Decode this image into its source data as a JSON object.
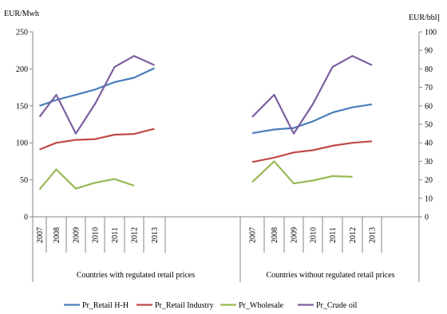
{
  "chart_data": {
    "type": "line",
    "left_axis_unit": "EUR/Mwh",
    "right_axis_unit": "EUR/bbl]",
    "left_ylim": [
      0,
      250
    ],
    "left_ticks": [
      0,
      50,
      100,
      150,
      200,
      250
    ],
    "right_ylim": [
      0,
      100
    ],
    "right_ticks": [
      0,
      10,
      20,
      30,
      40,
      50,
      60,
      70,
      80,
      90,
      100
    ],
    "categories": [
      "2007",
      "2008",
      "2009",
      "2010",
      "2011",
      "2012",
      "2013"
    ],
    "groups": [
      {
        "label": "Countries with regulated retail prices",
        "series": [
          {
            "name": "Pr_Retail H-H",
            "axis": "left",
            "values": [
              150,
              158,
              165,
              172,
              182,
              188,
              201
            ]
          },
          {
            "name": "Pr_Retail Industry",
            "axis": "left",
            "values": [
              91,
              100,
              104,
              105,
              111,
              112,
              119
            ]
          },
          {
            "name": "Pr_Wholesale",
            "axis": "left",
            "values": [
              37,
              64,
              38,
              46,
              51,
              42,
              null
            ]
          },
          {
            "name": "Pr_Crude oil",
            "axis": "right",
            "values": [
              54,
              66,
              45,
              61,
              81,
              87,
              82
            ]
          }
        ]
      },
      {
        "label": "Countries without regulated retail prices",
        "series": [
          {
            "name": "Pr_Retail H-H",
            "axis": "left",
            "values": [
              113,
              118,
              120,
              129,
              141,
              148,
              152
            ]
          },
          {
            "name": "Pr_Retail Industry",
            "axis": "left",
            "values": [
              74,
              80,
              87,
              90,
              96,
              100,
              102
            ]
          },
          {
            "name": "Pr_Wholesale",
            "axis": "left",
            "values": [
              47,
              75,
              45,
              49,
              55,
              54,
              null
            ]
          },
          {
            "name": "Pr_Crude oil",
            "axis": "right",
            "values": [
              54,
              66,
              45,
              61,
              81,
              87,
              82
            ]
          }
        ]
      }
    ],
    "legend": {
      "placement": "bottom",
      "entries": [
        "Pr_Retail H-H",
        "Pr_Retail Industry",
        "Pr_Wholesale",
        "Pr_Crude oil"
      ]
    },
    "colors": {
      "Pr_Retail H-H": "#4a7ebb",
      "Pr_Retail Industry": "#be4b48",
      "Pr_Wholesale": "#98b954",
      "Pr_Crude oil": "#7d5fa0"
    },
    "grid": false
  }
}
